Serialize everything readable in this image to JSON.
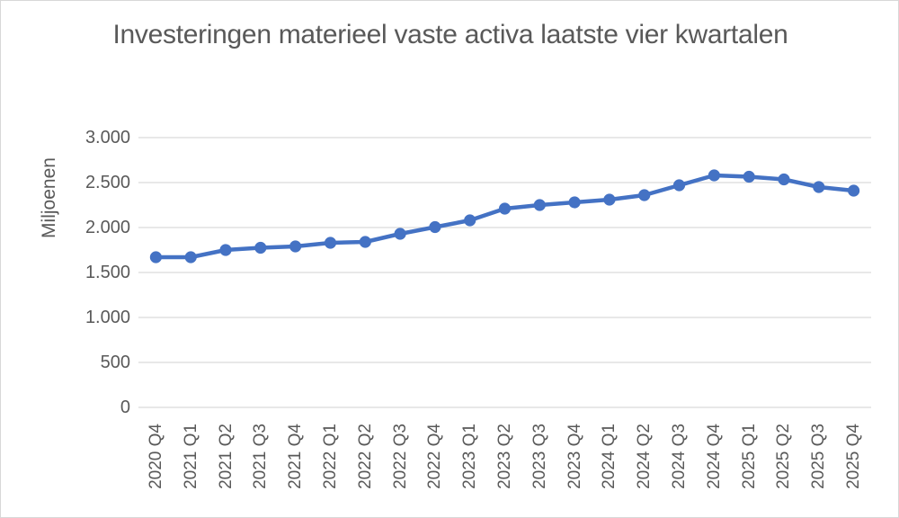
{
  "chart_data": {
    "type": "line",
    "title": "Investeringen materieel vaste activa laatste vier kwartalen",
    "xlabel": "",
    "ylabel": "Miljoenen",
    "categories": [
      "2020 Q4",
      "2021 Q1",
      "2021 Q2",
      "2021 Q3",
      "2021 Q4",
      "2022 Q1",
      "2022 Q2",
      "2022 Q3",
      "2022 Q4",
      "2023 Q1",
      "2023 Q2",
      "2023 Q3",
      "2023 Q4",
      "2024 Q1",
      "2024 Q2",
      "2024 Q3",
      "2024 Q4",
      "2025 Q1",
      "2025 Q2",
      "2025 Q3",
      "2025 Q4"
    ],
    "series": [
      {
        "name": "Investeringen materieel vaste activa",
        "values": [
          1670,
          1670,
          1750,
          1775,
          1790,
          1830,
          1840,
          1930,
          2005,
          2080,
          2210,
          2250,
          2280,
          2310,
          2360,
          2470,
          2580,
          2565,
          2535,
          2450,
          2410
        ]
      }
    ],
    "ylim": [
      0,
      3000
    ],
    "ytick_interval": 500,
    "ytick_labels": [
      "0",
      "500",
      "1.000",
      "1.500",
      "2.000",
      "2.500",
      "3.000"
    ],
    "grid": true,
    "legend_position": "none",
    "marker": "circle"
  },
  "colors": {
    "series_line": "#4472C4",
    "text": "#595959",
    "gridline": "#D9D9D9",
    "background": "#FFFFFF",
    "frame_border": "#D8D8D8"
  }
}
